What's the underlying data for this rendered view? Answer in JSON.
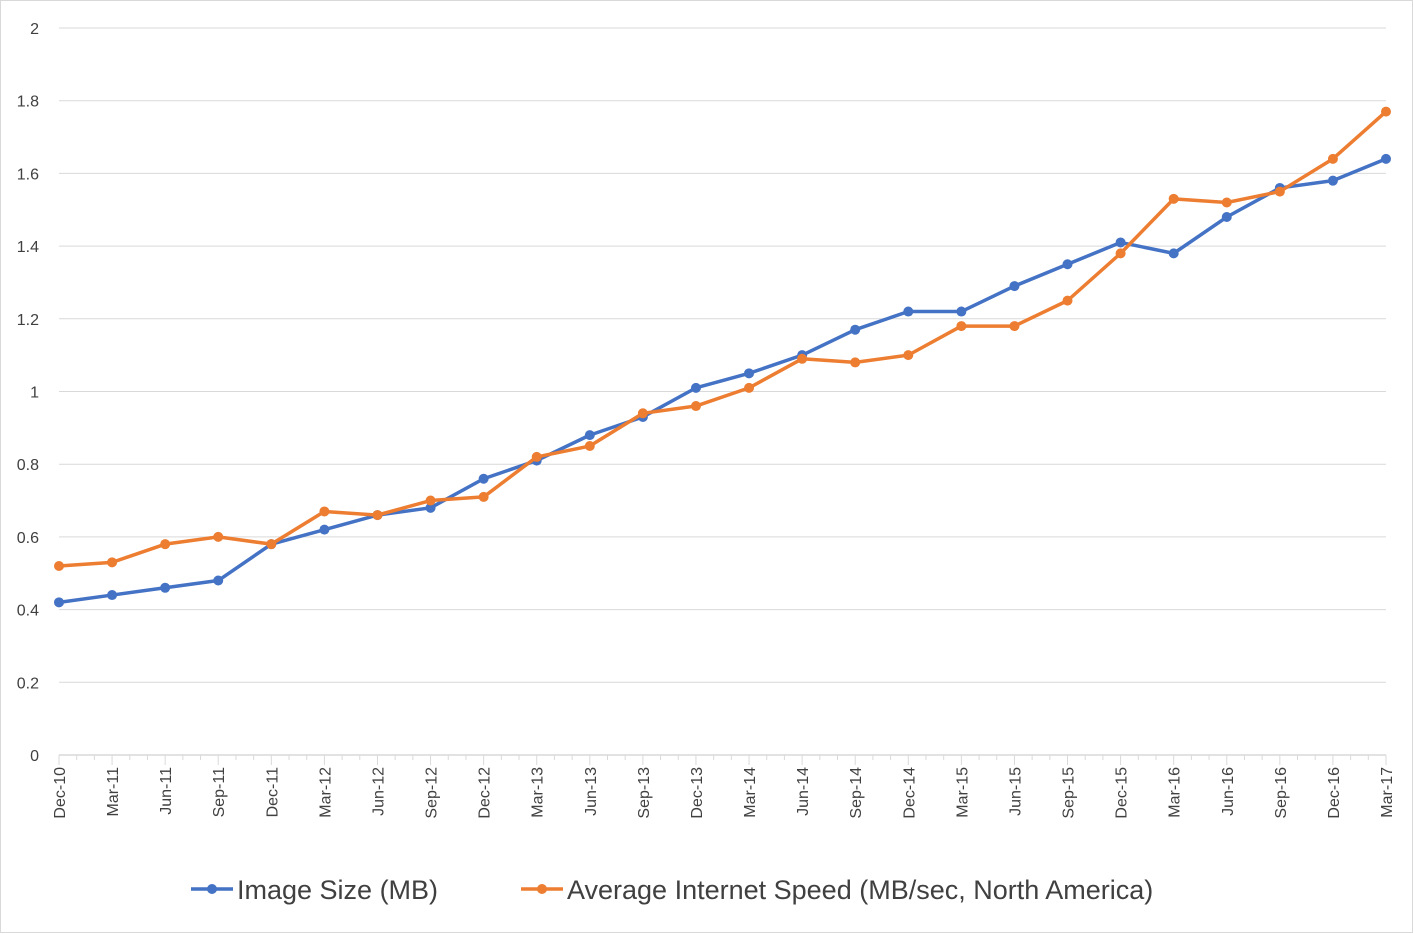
{
  "chart_data": {
    "type": "line",
    "title": "",
    "xlabel": "",
    "ylabel": "",
    "categories": [
      "Dec-10",
      "Mar-11",
      "Jun-11",
      "Sep-11",
      "Dec-11",
      "Mar-12",
      "Jun-12",
      "Sep-12",
      "Dec-12",
      "Mar-13",
      "Jun-13",
      "Sep-13",
      "Dec-13",
      "Mar-14",
      "Jun-14",
      "Sep-14",
      "Dec-14",
      "Mar-15",
      "Jun-15",
      "Sep-15",
      "Dec-15",
      "Mar-16",
      "Jun-16",
      "Sep-16",
      "Dec-16",
      "Mar-17"
    ],
    "ylim": [
      0,
      2
    ],
    "yticks": [
      0,
      0.2,
      0.4,
      0.6,
      0.8,
      1,
      1.2,
      1.4,
      1.6,
      1.8,
      2
    ],
    "ytick_labels": [
      "0",
      "0.2",
      "0.4",
      "0.6",
      "0.8",
      "1",
      "1.2",
      "1.4",
      "1.6",
      "1.8",
      "2"
    ],
    "grid": true,
    "legend_position": "bottom",
    "series": [
      {
        "name": "Image Size (MB)",
        "color": "#4472c4",
        "values": [
          0.42,
          0.44,
          0.46,
          0.48,
          0.58,
          0.62,
          0.66,
          0.68,
          0.76,
          0.81,
          0.88,
          0.93,
          1.01,
          1.05,
          1.1,
          1.17,
          1.22,
          1.22,
          1.29,
          1.35,
          1.41,
          1.38,
          1.48,
          1.56,
          1.58,
          1.64
        ]
      },
      {
        "name": "Average Internet Speed (MB/sec, North America)",
        "color": "#ed7d31",
        "values": [
          0.52,
          0.53,
          0.58,
          0.6,
          0.58,
          0.67,
          0.66,
          0.7,
          0.71,
          0.82,
          0.85,
          0.94,
          0.96,
          1.01,
          1.09,
          1.08,
          1.1,
          1.18,
          1.18,
          1.25,
          1.38,
          1.53,
          1.52,
          1.55,
          1.64,
          1.77
        ]
      }
    ]
  }
}
